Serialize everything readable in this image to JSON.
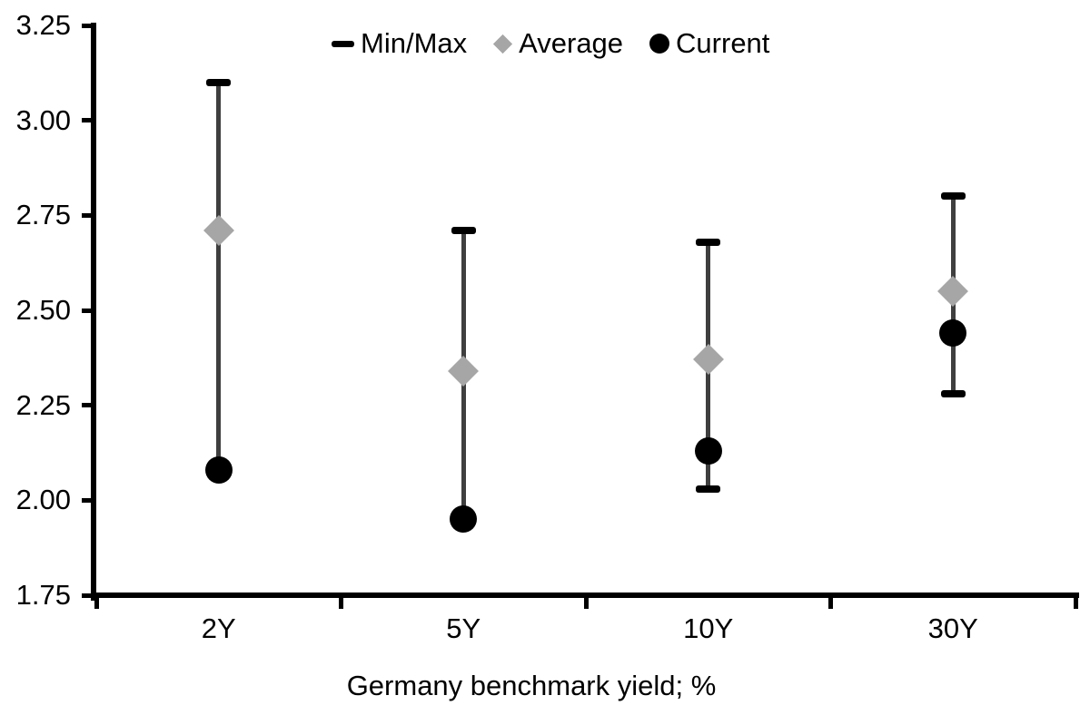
{
  "chart_data": {
    "type": "scatter",
    "subtype": "min-max-range-with-markers",
    "categories": [
      "2Y",
      "5Y",
      "10Y",
      "30Y"
    ],
    "series": [
      {
        "name": "Min/Max",
        "marker": "dash",
        "min": [
          2.08,
          1.95,
          2.03,
          2.28
        ],
        "max": [
          3.1,
          2.71,
          2.68,
          2.8
        ]
      },
      {
        "name": "Average",
        "marker": "diamond",
        "values": [
          2.71,
          2.34,
          2.37,
          2.55
        ]
      },
      {
        "name": "Current",
        "marker": "circle",
        "values": [
          2.08,
          1.95,
          2.13,
          2.44
        ]
      }
    ],
    "xlabel": "Germany benchmark yield; %",
    "ylabel": "",
    "ylim": [
      1.75,
      3.25
    ],
    "ytick_labels": [
      "3.25",
      "3.00",
      "2.75",
      "2.50",
      "2.25",
      "2.00",
      "1.75"
    ],
    "grid": false,
    "legend_position": "top-center",
    "colors": {
      "minmax_cap": "#000000",
      "whisker": "#3f3f3f",
      "average": "#a6a6a6",
      "current": "#000000",
      "axis": "#000000",
      "text": "#000000",
      "background": "#ffffff"
    }
  }
}
